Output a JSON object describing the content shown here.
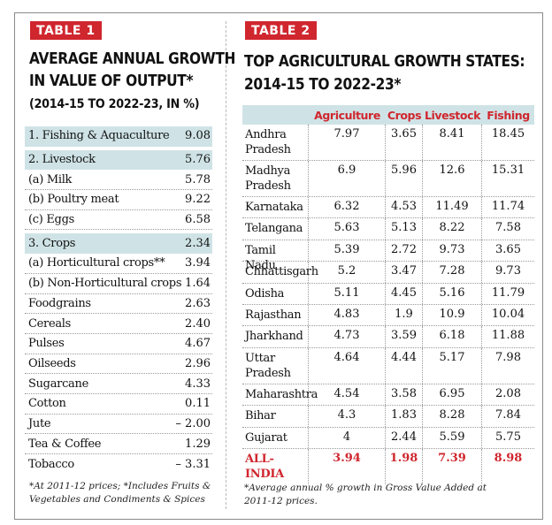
{
  "table1": {
    "badge": "TABLE 1",
    "title_line1": "AVERAGE ANNUAL GROWTH",
    "title_line2": "IN VALUE OF OUTPUT*",
    "subtitle": "(2014-15 TO 2022-23, IN %)",
    "rows": [
      {
        "label": "1. Fishing & Aquaculture",
        "value": "9.08"
      },
      {
        "label": "2. Livestock",
        "value": "5.76"
      },
      {
        "label": "(a) Milk",
        "value": "5.78"
      },
      {
        "label": "(b) Poultry meat",
        "value": "9.22"
      },
      {
        "label": "(c) Eggs",
        "value": "6.58"
      },
      {
        "label": "3. Crops",
        "value": "2.34"
      },
      {
        "label": "(a) Horticultural crops**",
        "value": "3.94"
      },
      {
        "label": "(b) Non-Horticultural crops",
        "value": "1.64"
      },
      {
        "label": "Foodgrains",
        "value": "2.63"
      },
      {
        "label": "Cereals",
        "value": "2.40"
      },
      {
        "label": "Pulses",
        "value": "4.67"
      },
      {
        "label": "Oilseeds",
        "value": "2.96"
      },
      {
        "label": "Sugarcane",
        "value": "4.33"
      },
      {
        "label": "Cotton",
        "value": "0.11"
      },
      {
        "label": "Jute",
        "value": "– 2.00"
      },
      {
        "label": "Tea & Coffee",
        "value": "1.29"
      },
      {
        "label": "Tobacco",
        "value": "– 3.31"
      }
    ],
    "footnote_line1": "*At 2011-12 prices; *Includes Fruits &",
    "footnote_line2": "Vegetables and Condiments & Spices"
  },
  "table2": {
    "badge": "TABLE 2",
    "title_line1": "TOP AGRICULTURAL GROWTH STATES:",
    "title_line2": "2014-15 TO 2022-23*",
    "headers": [
      "",
      "Agriculture",
      "Crops",
      "Livestock",
      "Fishing"
    ],
    "rows": [
      {
        "state": "Andhra Pradesh",
        "agriculture": "7.97",
        "crops": "3.65",
        "livestock": "8.41",
        "fishing": "18.45"
      },
      {
        "state": "Madhya Pradesh",
        "agriculture": "6.9",
        "crops": "5.96",
        "livestock": "12.6",
        "fishing": "15.31"
      },
      {
        "state": "Karnataka",
        "agriculture": "6.32",
        "crops": "4.53",
        "livestock": "11.49",
        "fishing": "11.74"
      },
      {
        "state": "Telangana",
        "agriculture": "5.63",
        "crops": "5.13",
        "livestock": "8.22",
        "fishing": "7.58"
      },
      {
        "state": "Tamil Nadu",
        "agriculture": "5.39",
        "crops": "2.72",
        "livestock": "9.73",
        "fishing": "3.65"
      },
      {
        "state": "Chhattisgarh",
        "agriculture": "5.2",
        "crops": "3.47",
        "livestock": "7.28",
        "fishing": "9.73"
      },
      {
        "state": "Odisha",
        "agriculture": "5.11",
        "crops": "4.45",
        "livestock": "5.16",
        "fishing": "11.79"
      },
      {
        "state": "Rajasthan",
        "agriculture": "4.83",
        "crops": "1.9",
        "livestock": "10.9",
        "fishing": "10.04"
      },
      {
        "state": "Jharkhand",
        "agriculture": "4.73",
        "crops": "3.59",
        "livestock": "6.18",
        "fishing": "11.88"
      },
      {
        "state": "Uttar Pradesh",
        "agriculture": "4.64",
        "crops": "4.44",
        "livestock": "5.17",
        "fishing": "7.98"
      },
      {
        "state": "Maharashtra",
        "agriculture": "4.54",
        "crops": "3.58",
        "livestock": "6.95",
        "fishing": "2.08"
      },
      {
        "state": "Bihar",
        "agriculture": "4.3",
        "crops": "1.83",
        "livestock": "8.28",
        "fishing": "7.84"
      },
      {
        "state": "Gujarat",
        "agriculture": "4",
        "crops": "2.44",
        "livestock": "5.59",
        "fishing": "5.75"
      }
    ],
    "total": {
      "state": "ALL-INDIA",
      "agriculture": "3.94",
      "crops": "1.98",
      "livestock": "7.39",
      "fishing": "8.98"
    },
    "footnote_line1": "*Average annual % growth in Gross Value Added at",
    "footnote_line2": "2011-12 prices."
  },
  "colors": {
    "accent": "#d0262e",
    "highlight": "#cfe3e6"
  }
}
